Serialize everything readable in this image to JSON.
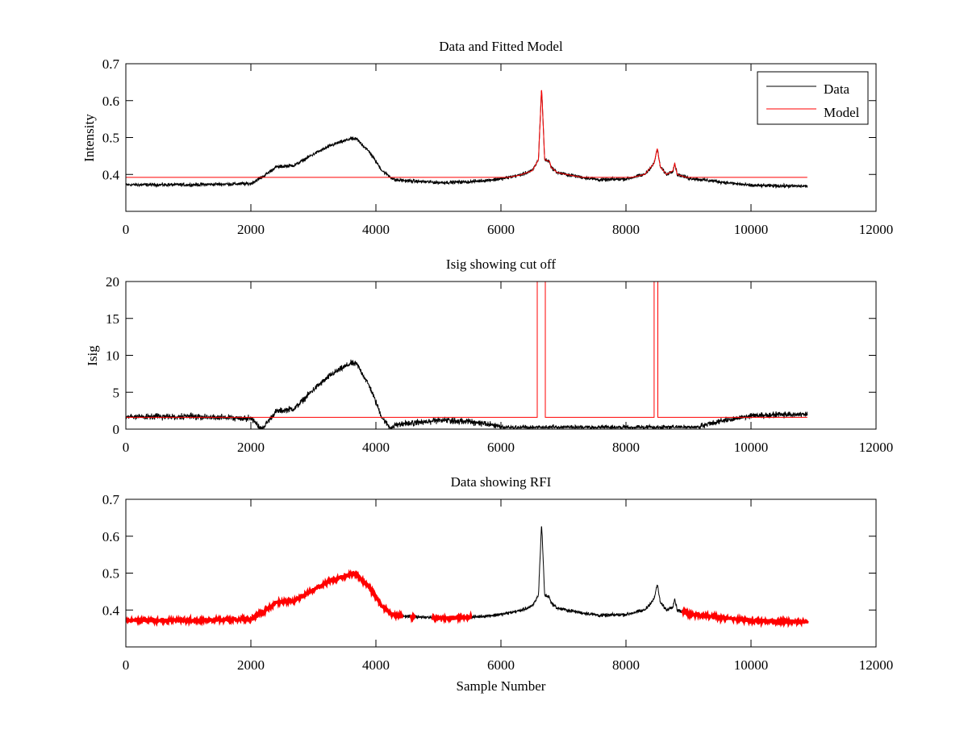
{
  "chart_data": [
    {
      "type": "line",
      "title": "Data and Fitted Model",
      "xlabel": "",
      "ylabel": "Intensity",
      "xlim": [
        0,
        12000
      ],
      "ylim": [
        0.3,
        0.7
      ],
      "xticks": [
        "0",
        "2000",
        "4000",
        "6000",
        "8000",
        "10000",
        "12000"
      ],
      "yticks": [
        "0.4",
        "0.5",
        "0.6",
        "0.7"
      ],
      "legend": {
        "position": "top-right",
        "entries": [
          "Data",
          "Model"
        ]
      },
      "series": [
        {
          "name": "Data",
          "color": "#000000",
          "x": [
            0,
            1000,
            2000,
            2200,
            2400,
            2700,
            3000,
            3300,
            3600,
            3700,
            3900,
            4100,
            4300,
            5000,
            5500,
            6000,
            6300,
            6500,
            6600,
            6650,
            6700,
            6780,
            6800,
            6900,
            7200,
            7600,
            8000,
            8300,
            8450,
            8500,
            8550,
            8650,
            8750,
            8780,
            8820,
            9000,
            9500,
            10000,
            10900
          ],
          "y": [
            0.372,
            0.372,
            0.375,
            0.395,
            0.42,
            0.425,
            0.455,
            0.48,
            0.497,
            0.495,
            0.46,
            0.41,
            0.385,
            0.378,
            0.38,
            0.388,
            0.398,
            0.41,
            0.44,
            0.635,
            0.44,
            0.435,
            0.42,
            0.405,
            0.395,
            0.385,
            0.388,
            0.4,
            0.43,
            0.47,
            0.42,
            0.4,
            0.41,
            0.43,
            0.4,
            0.39,
            0.38,
            0.37,
            0.368
          ]
        },
        {
          "name": "Model",
          "color": "#ff0000",
          "baseline": 0.392,
          "tracks_data_range": [
            6000,
            9200
          ]
        }
      ]
    },
    {
      "type": "line",
      "title": "Isig showing cut off",
      "xlabel": "",
      "ylabel": "Isig",
      "xlim": [
        0,
        12000
      ],
      "ylim": [
        0,
        20
      ],
      "xticks": [
        "0",
        "2000",
        "4000",
        "6000",
        "8000",
        "10000",
        "12000"
      ],
      "yticks": [
        "0",
        "5",
        "10",
        "15",
        "20"
      ],
      "series": [
        {
          "name": "Isig",
          "color": "#000000",
          "scale": 85
        },
        {
          "name": "Cut off",
          "color": "#ff0000",
          "value": 1.6,
          "spike_ranges": [
            [
              6580,
              6710
            ],
            [
              8450,
              8510
            ]
          ]
        }
      ]
    },
    {
      "type": "line",
      "title": "Data showing RFI",
      "xlabel": "Sample Number",
      "ylabel": "",
      "xlim": [
        0,
        12000
      ],
      "ylim": [
        0.3,
        0.7
      ],
      "xticks": [
        "0",
        "2000",
        "4000",
        "6000",
        "8000",
        "10000",
        "12000"
      ],
      "yticks": [
        "0.4",
        "0.5",
        "0.6",
        "0.7"
      ],
      "series": [
        {
          "name": "Data",
          "color": "#000000"
        },
        {
          "name": "RFI",
          "color": "#ff0000",
          "ranges": [
            [
              0,
              4420
            ],
            [
              4560,
              4620
            ],
            [
              4900,
              5520
            ],
            [
              8900,
              10900
            ]
          ]
        }
      ]
    }
  ]
}
